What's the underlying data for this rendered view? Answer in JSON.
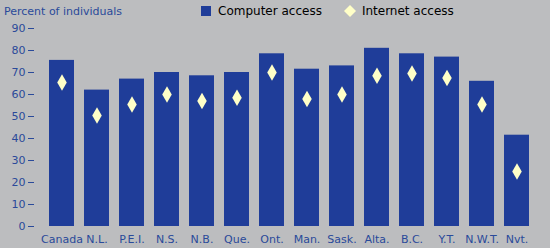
{
  "chart_data": {
    "type": "bar",
    "y_label": "Percent of individuals",
    "categories": [
      "Canada",
      "N.L.",
      "P.E.I.",
      "N.S.",
      "N.B.",
      "Que.",
      "Ont.",
      "Man.",
      "Sask.",
      "Alta.",
      "B.C.",
      "Y.T.",
      "N.W.T.",
      "Nvt."
    ],
    "series": [
      {
        "name": "Computer access",
        "type": "bar",
        "color": "#1f3d99",
        "values": [
          75.5,
          62,
          67,
          70,
          68.5,
          70,
          78.5,
          71.5,
          73,
          81,
          78.5,
          77,
          66,
          41.5
        ]
      },
      {
        "name": "Internet access",
        "type": "scatter",
        "marker": "diamond",
        "color": "#ffffc8",
        "values": [
          65.5,
          50.5,
          55.5,
          60,
          57,
          58.5,
          70,
          58,
          60,
          68.5,
          69.5,
          67.5,
          55.5,
          25
        ]
      }
    ],
    "ylim": [
      0,
      90
    ],
    "yticks": [
      0,
      10,
      20,
      30,
      40,
      50,
      60,
      70,
      80,
      90
    ],
    "grid": false,
    "legend": "top"
  }
}
